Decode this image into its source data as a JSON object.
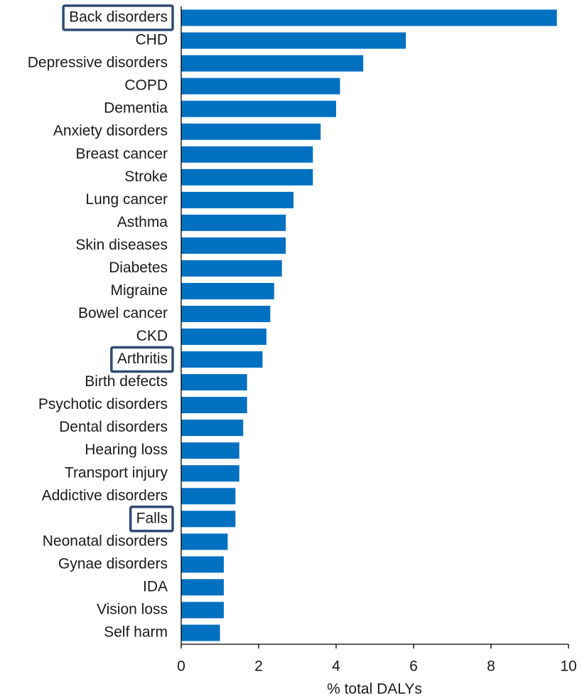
{
  "chart_data": {
    "type": "barh",
    "xlabel": "% total DALYs",
    "categories": [
      "Back disorders",
      "CHD",
      "Depressive disorders",
      "COPD",
      "Dementia",
      "Anxiety disorders",
      "Breast cancer",
      "Stroke",
      "Lung cancer",
      "Asthma",
      "Skin diseases",
      "Diabetes",
      "Migraine",
      "Bowel cancer",
      "CKD",
      "Arthritis",
      "Birth defects",
      "Psychotic disorders",
      "Dental disorders",
      "Hearing loss",
      "Transport injury",
      "Addictive disorders",
      "Falls",
      "Neonatal disorders",
      "Gynae disorders",
      "IDA",
      "Vision loss",
      "Self harm"
    ],
    "values": [
      9.7,
      5.8,
      4.7,
      4.1,
      4.0,
      3.6,
      3.4,
      3.4,
      2.9,
      2.7,
      2.7,
      2.6,
      2.4,
      2.3,
      2.2,
      2.1,
      1.7,
      1.7,
      1.6,
      1.5,
      1.5,
      1.4,
      1.4,
      1.2,
      1.1,
      1.1,
      1.1,
      1.0
    ],
    "color": "#0070c0",
    "xlim": [
      0,
      10
    ],
    "xticks": [
      0,
      2,
      4,
      6,
      8,
      10
    ],
    "grid": false
  }
}
